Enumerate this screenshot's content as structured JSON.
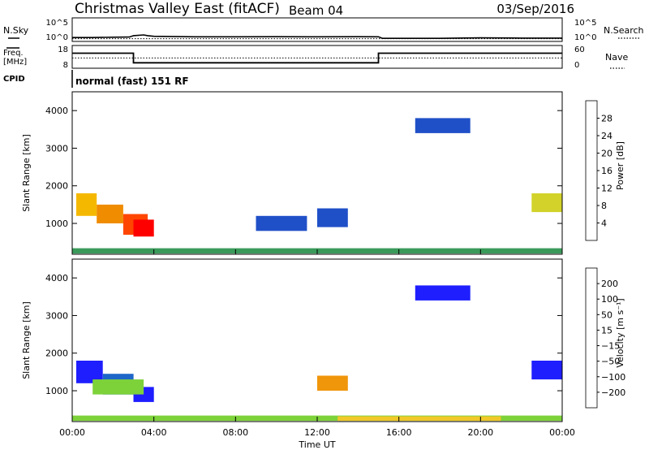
{
  "header": {
    "title": "Christmas Valley East (fitACF)",
    "beam": "Beam 04",
    "date": "03/Sep/2016"
  },
  "top_panels": {
    "nsky_label": "N.Sky",
    "nsky_ticks": [
      "10^5",
      "10^0"
    ],
    "nsearch_label": "N.Search",
    "nsearch_ticks": [
      "10^5",
      "10^0"
    ],
    "freq_label_1": "Freq.",
    "freq_label_2": "[MHz]",
    "freq_ticks": [
      "18",
      "8"
    ],
    "nave_label": "Nave",
    "nave_ticks": [
      "60",
      "0"
    ],
    "cpid_label": "CPID",
    "cpid_text": "normal (fast) 151 RF"
  },
  "colors": {
    "power": [
      "#1e1eff",
      "#2050c8",
      "#2e7d8c",
      "#3a9a5a",
      "#7dc83c",
      "#d2d22a",
      "#f5b800",
      "#f08c00",
      "#ff4600",
      "#ff0000"
    ],
    "velocity": [
      "#1e1eff",
      "#1f66c9",
      "#2a8a78",
      "#3da03d",
      "#7dd23a",
      "#c8c8c8",
      "#f0c828",
      "#f0960a",
      "#ff5a00",
      "#ff0000"
    ]
  },
  "chart_data": [
    {
      "type": "line",
      "panel": "noise",
      "xlim": [
        0,
        24
      ],
      "series": [
        {
          "name": "N.Sky",
          "style": "solid",
          "x": [
            0,
            1,
            2,
            2.8,
            3,
            3.5,
            3.7,
            4,
            6,
            8,
            10,
            12,
            14,
            15,
            15.2,
            18,
            20,
            22,
            24
          ],
          "values": [
            1,
            1,
            1.2,
            1.3,
            3,
            4.5,
            3,
            2,
            1.5,
            1.5,
            1.6,
            1.5,
            1.6,
            1.5,
            0.6,
            0.6,
            0.8,
            0.7,
            0.7
          ]
        },
        {
          "name": "N.Search",
          "style": "dotted",
          "x": [
            0,
            24
          ],
          "values": [
            0.5,
            0.5
          ]
        }
      ]
    },
    {
      "type": "line",
      "panel": "frequency",
      "xlim": [
        0,
        24
      ],
      "series": [
        {
          "name": "Freq.",
          "style": "solid",
          "x": [
            0,
            3,
            3,
            15,
            15,
            24
          ],
          "values": [
            14.6,
            14.6,
            10.4,
            10.4,
            14.6,
            14.6
          ]
        },
        {
          "name": "Nave",
          "style": "dotted",
          "x": [
            0,
            24
          ],
          "values": [
            27,
            27
          ]
        }
      ]
    },
    {
      "type": "heatmap",
      "panel": "power",
      "xlabel": "",
      "ylabel": "Slant Range [km]",
      "xlim": [
        0,
        24
      ],
      "ylim": [
        180,
        4500
      ],
      "yticks": [
        1000,
        2000,
        3000,
        4000
      ],
      "colorbar_label": "Power [dB]",
      "colorbar_ticks": [
        "4",
        "8",
        "12",
        "16",
        "20",
        "24",
        "28"
      ],
      "regions": [
        {
          "x0": 0.2,
          "x1": 1.2,
          "y0": 1200,
          "y1": 1800,
          "level": 6
        },
        {
          "x0": 1.2,
          "x1": 2.5,
          "y0": 1000,
          "y1": 1500,
          "level": 7
        },
        {
          "x0": 2.5,
          "x1": 3.7,
          "y0": 700,
          "y1": 1250,
          "level": 8
        },
        {
          "x0": 3.0,
          "x1": 4.0,
          "y0": 650,
          "y1": 1100,
          "level": 9
        },
        {
          "x0": 0,
          "x1": 24,
          "y0": 200,
          "y1": 340,
          "level": 3
        },
        {
          "x0": 22.5,
          "x1": 24,
          "y0": 1300,
          "y1": 1800,
          "level": 5
        },
        {
          "x0": 16.8,
          "x1": 19.5,
          "y0": 3400,
          "y1": 3800,
          "level": 1
        },
        {
          "x0": 9.0,
          "x1": 11.5,
          "y0": 800,
          "y1": 1200,
          "level": 1
        },
        {
          "x0": 12.0,
          "x1": 13.5,
          "y0": 900,
          "y1": 1400,
          "level": 1
        }
      ]
    },
    {
      "type": "heatmap",
      "panel": "velocity",
      "xlabel": "Time UT",
      "ylabel": "Slant Range [km]",
      "xlim": [
        0,
        24
      ],
      "ylim": [
        180,
        4500
      ],
      "xticks": [
        "00:00",
        "04:00",
        "08:00",
        "12:00",
        "16:00",
        "20:00",
        "00:00"
      ],
      "yticks": [
        1000,
        2000,
        3000,
        4000
      ],
      "colorbar_label": "Velocity [m s⁻¹]",
      "colorbar_ticks": [
        "200",
        "100",
        "50",
        "15",
        "−15",
        "−50",
        "−100",
        "−200"
      ],
      "regions": [
        {
          "x0": 0.2,
          "x1": 1.5,
          "y0": 1200,
          "y1": 1800,
          "level": 0
        },
        {
          "x0": 1.5,
          "x1": 3.0,
          "y0": 900,
          "y1": 1450,
          "level": 1
        },
        {
          "x0": 3.0,
          "x1": 4.0,
          "y0": 700,
          "y1": 1100,
          "level": 0
        },
        {
          "x0": 1.0,
          "x1": 3.5,
          "y0": 900,
          "y1": 1300,
          "level": 4
        },
        {
          "x0": 0,
          "x1": 24,
          "y0": 200,
          "y1": 340,
          "level": 4
        },
        {
          "x0": 13.0,
          "x1": 21.0,
          "y0": 200,
          "y1": 320,
          "level": 6
        },
        {
          "x0": 22.5,
          "x1": 24,
          "y0": 1300,
          "y1": 1800,
          "level": 0
        },
        {
          "x0": 16.8,
          "x1": 19.5,
          "y0": 3400,
          "y1": 3800,
          "level": 0
        },
        {
          "x0": 12.0,
          "x1": 13.5,
          "y0": 1000,
          "y1": 1400,
          "level": 7
        }
      ]
    }
  ]
}
